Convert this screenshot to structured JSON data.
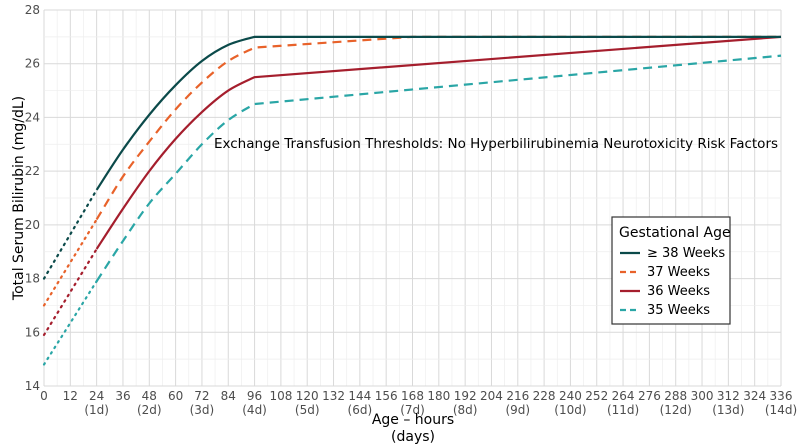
{
  "chart_data": {
    "type": "line",
    "title": "",
    "annotation": "Exchange Transfusion Thresholds: No Hyperbilirubinemia Neurotoxicity Risk Factors",
    "xlabel": "Age – hours",
    "xlabel_sub": "(days)",
    "ylabel": "Total Serum Bilirubin (mg/dL)",
    "xlim": [
      0,
      336
    ],
    "ylim": [
      14,
      28
    ],
    "x_ticks": [
      0,
      12,
      24,
      36,
      48,
      60,
      72,
      84,
      96,
      108,
      120,
      132,
      144,
      156,
      168,
      180,
      192,
      204,
      216,
      228,
      240,
      252,
      264,
      276,
      288,
      300,
      312,
      324,
      336
    ],
    "x_day_labels": [
      {
        "x": 24,
        "label": "(1d)"
      },
      {
        "x": 48,
        "label": "(2d)"
      },
      {
        "x": 72,
        "label": "(3d)"
      },
      {
        "x": 96,
        "label": "(4d)"
      },
      {
        "x": 120,
        "label": "(5d)"
      },
      {
        "x": 144,
        "label": "(6d)"
      },
      {
        "x": 168,
        "label": "(7d)"
      },
      {
        "x": 192,
        "label": "(8d)"
      },
      {
        "x": 216,
        "label": "(9d)"
      },
      {
        "x": 240,
        "label": "(10d)"
      },
      {
        "x": 264,
        "label": "(11d)"
      },
      {
        "x": 288,
        "label": "(12d)"
      },
      {
        "x": 312,
        "label": "(13d)"
      },
      {
        "x": 336,
        "label": "(14d)"
      }
    ],
    "y_ticks": [
      14,
      16,
      18,
      20,
      22,
      24,
      26,
      28
    ],
    "grid": true,
    "legend": {
      "title": "Gestational Age",
      "placement": "right",
      "entries": [
        "≥ 38 Weeks",
        "37 Weeks",
        "36 Weeks",
        "35 Weeks"
      ]
    },
    "series": [
      {
        "name": "≥ 38 Weeks",
        "color": "#0b4a4a",
        "line_style": "solid",
        "dotted_segment": {
          "x": [
            0,
            24
          ],
          "y": [
            18.0,
            21.3
          ]
        },
        "x": [
          24,
          36,
          48,
          60,
          72,
          84,
          96,
          336
        ],
        "y": [
          21.3,
          22.8,
          24.1,
          25.2,
          26.1,
          26.7,
          27.0,
          27.0
        ]
      },
      {
        "name": "37 Weeks",
        "color": "#e8622a",
        "line_style": "dashed",
        "dotted_segment": {
          "x": [
            0,
            24
          ],
          "y": [
            17.0,
            20.2
          ]
        },
        "x": [
          24,
          36,
          48,
          60,
          72,
          84,
          96,
          168,
          336
        ],
        "y": [
          20.2,
          21.8,
          23.1,
          24.3,
          25.3,
          26.1,
          26.6,
          27.0,
          27.0
        ]
      },
      {
        "name": "36 Weeks",
        "color": "#a51e2d",
        "line_style": "solid",
        "dotted_segment": {
          "x": [
            0,
            24
          ],
          "y": [
            15.9,
            19.1
          ]
        },
        "x": [
          24,
          36,
          48,
          60,
          72,
          84,
          96,
          336
        ],
        "y": [
          19.1,
          20.6,
          22.0,
          23.2,
          24.2,
          25.0,
          25.5,
          27.0
        ]
      },
      {
        "name": "35 Weeks",
        "color": "#2aa6a6",
        "line_style": "dashed",
        "dotted_segment": {
          "x": [
            0,
            24
          ],
          "y": [
            14.8,
            17.9
          ]
        },
        "x": [
          24,
          36,
          48,
          60,
          72,
          84,
          96,
          336
        ],
        "y": [
          17.9,
          19.4,
          20.8,
          21.9,
          23.0,
          23.9,
          24.5,
          26.3
        ]
      }
    ]
  }
}
